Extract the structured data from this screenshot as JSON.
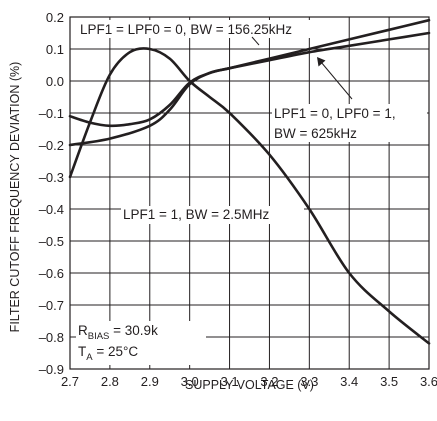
{
  "chart_data": {
    "type": "line",
    "title": "",
    "xlabel": "SUPPLY VOLTAGE (V)",
    "ylabel": "FILTER CUTOFF FREQUENCY DEVIATION (%)",
    "xlim": [
      2.7,
      3.6
    ],
    "ylim": [
      -0.9,
      0.2
    ],
    "x_ticks": [
      "2.7",
      "2.8",
      "2.9",
      "3.0",
      "3.1",
      "3.2",
      "3.3",
      "3.4",
      "3.5",
      "3.6"
    ],
    "y_ticks": [
      "0.2",
      "0.1",
      "0.0",
      "–0.1",
      "–0.2",
      "–0.3",
      "–0.4",
      "–0.5",
      "–0.6",
      "–0.7",
      "–0.8",
      "–0.9"
    ],
    "grid": true,
    "series": [
      {
        "label": "LPF1 = LPF0 = 0, BW = 156.25kHz",
        "x": [
          2.7,
          2.8,
          2.9,
          2.95,
          3.0,
          3.05,
          3.1,
          3.2,
          3.3,
          3.4,
          3.5,
          3.6
        ],
        "y": [
          -0.2,
          -0.18,
          -0.14,
          -0.09,
          -0.01,
          0.025,
          0.04,
          0.07,
          0.1,
          0.13,
          0.16,
          0.19
        ]
      },
      {
        "label": "LPF1 = 0, LPF0 = 1, BW = 625kHz",
        "x": [
          2.7,
          2.75,
          2.8,
          2.85,
          2.9,
          2.95,
          3.0,
          3.05,
          3.1,
          3.2,
          3.3,
          3.4,
          3.5,
          3.6
        ],
        "y": [
          -0.11,
          -0.13,
          -0.14,
          -0.135,
          -0.12,
          -0.075,
          -0.005,
          0.025,
          0.04,
          0.065,
          0.09,
          0.11,
          0.13,
          0.15
        ]
      },
      {
        "label": "LPF1 = 1, BW = 2.5MHz",
        "x": [
          2.7,
          2.75,
          2.8,
          2.85,
          2.9,
          2.95,
          3.0,
          3.05,
          3.1,
          3.2,
          3.3,
          3.4,
          3.5,
          3.6
        ],
        "y": [
          -0.3,
          -0.13,
          0.02,
          0.09,
          0.1,
          0.07,
          0.0,
          -0.05,
          -0.1,
          -0.23,
          -0.4,
          -0.6,
          -0.72,
          -0.82
        ]
      }
    ],
    "annotations": [
      {
        "text": "LPF1 = LPF0 = 0, BW = 156.25kHz"
      },
      {
        "line1": "LPF1 = 0, LPF0 = 1,",
        "line2": "BW = 625kHz"
      },
      {
        "text": "LPF1 = 1, BW = 2.5MHz"
      },
      {
        "r_main": "R",
        "r_sub": "BIAS",
        "r_value": " = 30.9k",
        "t_main": "T",
        "t_sub": "A",
        "t_value": " = 25°C"
      }
    ]
  }
}
